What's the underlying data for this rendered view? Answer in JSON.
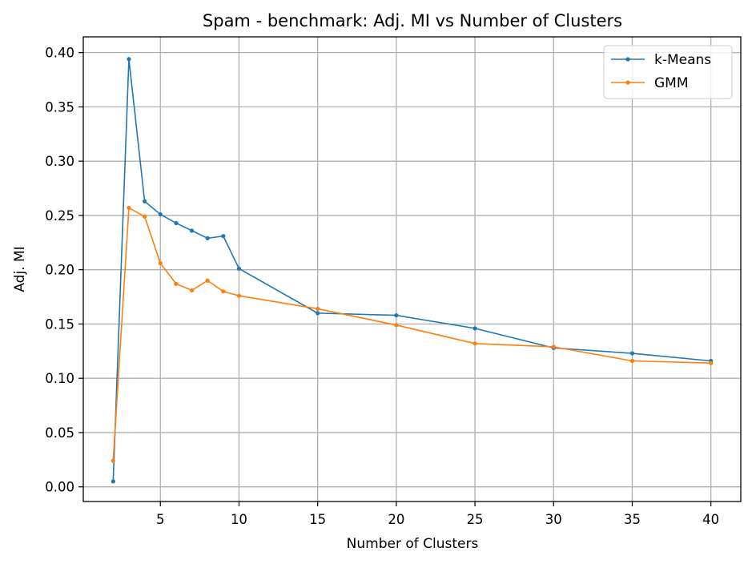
{
  "chart_data": {
    "type": "line",
    "title": "Spam - benchmark: Adj. MI vs Number of Clusters",
    "xlabel": "Number of Clusters",
    "ylabel": "Adj. MI",
    "xlim": [
      0.1,
      41.9
    ],
    "ylim": [
      -0.0135,
      0.4145
    ],
    "xticks": [
      5,
      10,
      15,
      20,
      25,
      30,
      35,
      40
    ],
    "yticks": [
      0.0,
      0.05,
      0.1,
      0.15,
      0.2,
      0.25,
      0.3,
      0.35,
      0.4
    ],
    "grid": true,
    "legend_position": "top-right",
    "x": [
      2,
      3,
      4,
      5,
      6,
      7,
      8,
      9,
      10,
      15,
      20,
      25,
      30,
      35,
      40
    ],
    "series": [
      {
        "name": "k-Means",
        "color": "#1f77b4",
        "values": [
          0.005,
          0.394,
          0.263,
          0.251,
          0.243,
          0.236,
          0.229,
          0.231,
          0.201,
          0.16,
          0.158,
          0.146,
          0.128,
          0.123,
          0.116
        ]
      },
      {
        "name": "GMM",
        "color": "#ff7f0e",
        "values": [
          0.024,
          0.257,
          0.249,
          0.206,
          0.187,
          0.181,
          0.19,
          0.18,
          0.176,
          0.164,
          0.149,
          0.132,
          0.129,
          0.116,
          0.114
        ]
      }
    ]
  }
}
